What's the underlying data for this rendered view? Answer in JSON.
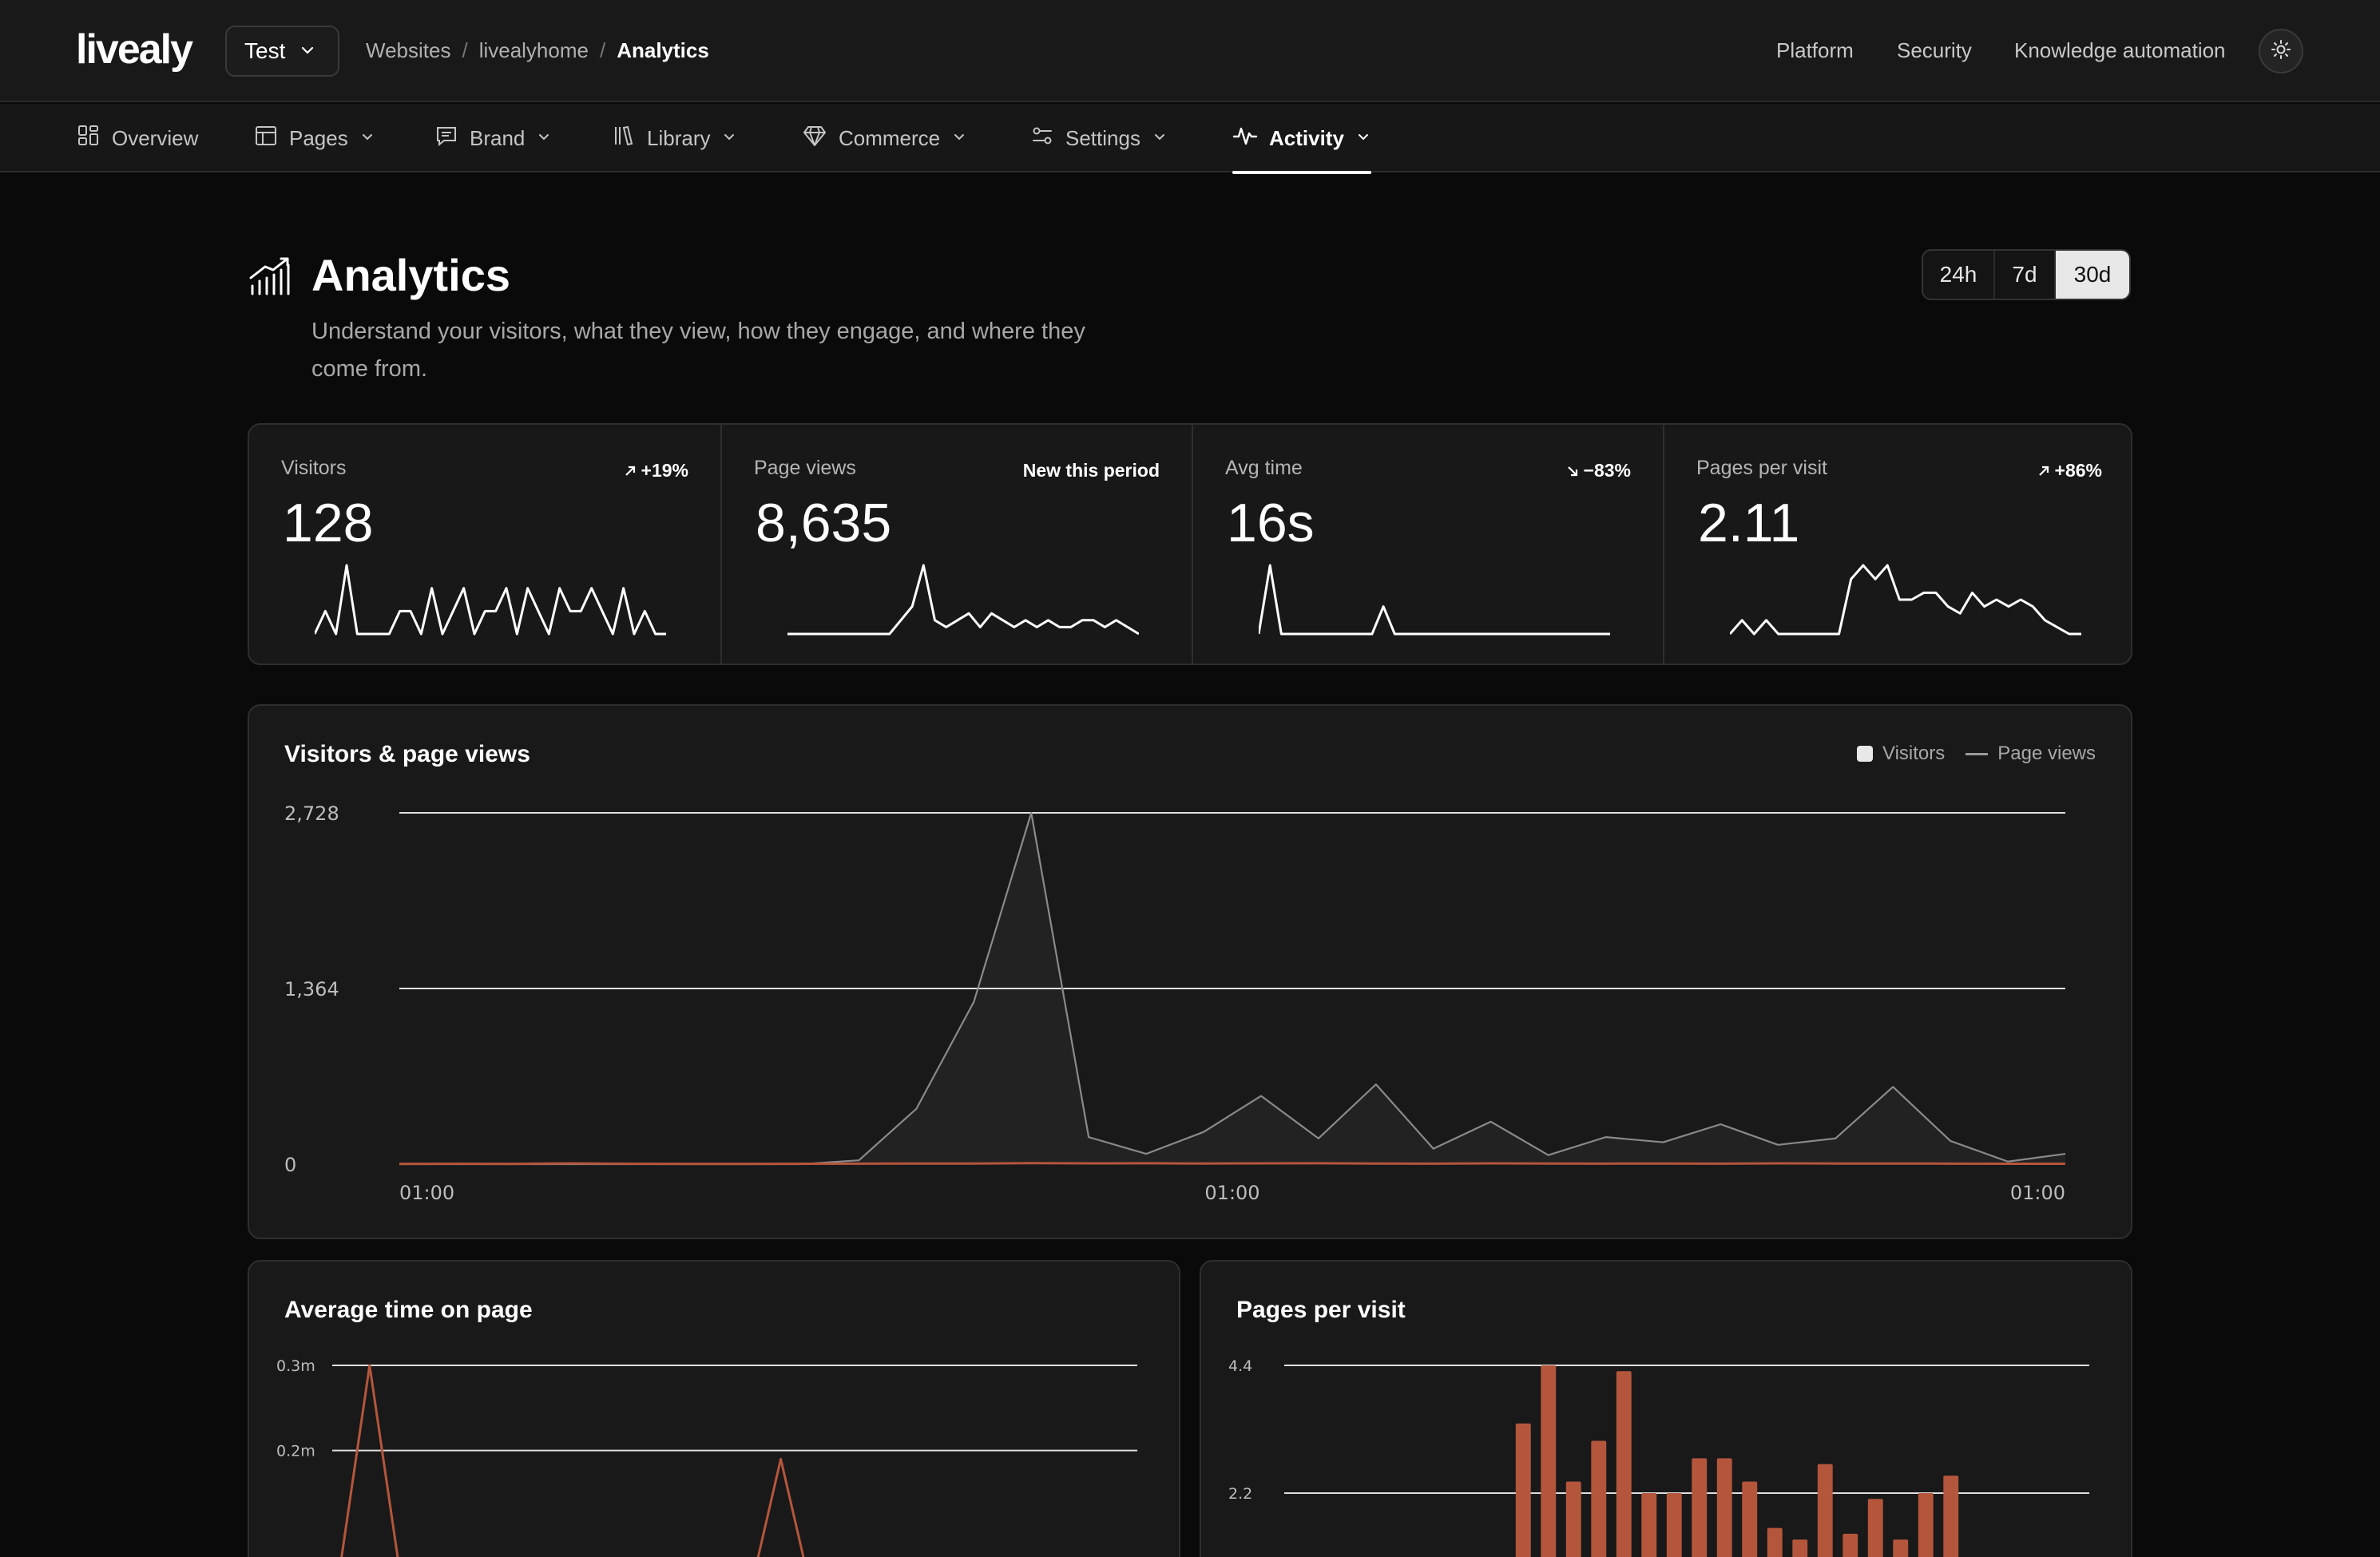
{
  "app": {
    "logo_text": "livealy",
    "project": "Test"
  },
  "breadcrumb": {
    "items": [
      "Websites",
      "livealyhome"
    ],
    "separator": "/",
    "current": "Analytics"
  },
  "top_nav": {
    "platform": "Platform",
    "security": "Security",
    "knowledge": "Knowledge automation",
    "theme_icon": "sun-icon"
  },
  "tabs": [
    {
      "label": "Overview",
      "icon": "grid-icon"
    },
    {
      "label": "Pages",
      "icon": "layout-icon"
    },
    {
      "label": "Brand",
      "icon": "message-icon"
    },
    {
      "label": "Library",
      "icon": "library-icon"
    },
    {
      "label": "Commerce",
      "icon": "diamond-icon"
    },
    {
      "label": "Settings",
      "icon": "sliders-icon"
    },
    {
      "label": "Activity",
      "icon": "activity-icon",
      "active": true
    }
  ],
  "page": {
    "title": "Analytics",
    "subtitle": "Understand your visitors, what they view, how they engage, and where they come from."
  },
  "ranges": {
    "options": [
      "24h",
      "7d",
      "30d"
    ],
    "selected": "30d"
  },
  "stats": [
    {
      "label": "Visitors",
      "value": "128",
      "delta": "+19%",
      "direction": "up",
      "spark": [
        0,
        1,
        0,
        3,
        0,
        0,
        0,
        0,
        1,
        1,
        0,
        2,
        0,
        1,
        2,
        0,
        1,
        1,
        2,
        0,
        2,
        1,
        0,
        2,
        1,
        1,
        2,
        1,
        0,
        2,
        0,
        1,
        0,
        0
      ]
    },
    {
      "label": "Page views",
      "value": "8,635",
      "delta": "New this period",
      "direction": "none",
      "spark": [
        0,
        0,
        0,
        0,
        0,
        0,
        0,
        0,
        0,
        0,
        0.2,
        0.4,
        1,
        0.2,
        0.1,
        0.2,
        0.3,
        0.1,
        0.3,
        0.2,
        0.1,
        0.2,
        0.1,
        0.2,
        0.1,
        0.1,
        0.2,
        0.2,
        0.1,
        0.2,
        0.1,
        0
      ]
    },
    {
      "label": "Avg time",
      "value": "16s",
      "delta": "−83%",
      "direction": "down",
      "spark": [
        0,
        1,
        0,
        0,
        0,
        0,
        0,
        0,
        0,
        0,
        0,
        0.4,
        0,
        0,
        0,
        0,
        0,
        0,
        0,
        0,
        0,
        0,
        0,
        0,
        0,
        0,
        0,
        0,
        0,
        0,
        0,
        0
      ]
    },
    {
      "label": "Pages per visit",
      "value": "2.11",
      "delta": "+86%",
      "direction": "up",
      "spark": [
        0,
        0.2,
        0,
        0.2,
        0,
        0,
        0,
        0,
        0,
        0,
        0.8,
        1,
        0.8,
        1,
        0.5,
        0.5,
        0.6,
        0.6,
        0.4,
        0.3,
        0.6,
        0.4,
        0.5,
        0.4,
        0.5,
        0.4,
        0.2,
        0.1,
        0,
        0
      ]
    }
  ],
  "colors": {
    "accent": "#b4563c",
    "line_gray": "#8a8a8a",
    "background": "#0a0a0a",
    "panel": "#191919"
  },
  "panels": {
    "main_title": "Visitors & page views",
    "legend_visitors": "Visitors",
    "legend_pageviews": "Page views",
    "avg_time_title": "Average time on page",
    "ppv_title": "Pages per visit"
  },
  "chart_data": [
    {
      "type": "line",
      "title": "Visitors & page views",
      "x_tick_labels": [
        "01:00",
        "01:00",
        "01:00"
      ],
      "y_tick_labels": [
        "2,728",
        "1,364",
        "0"
      ],
      "ylim": [
        0,
        2728
      ],
      "legend_position": "top-right",
      "grid": true,
      "series": [
        {
          "name": "Page views",
          "color": "#8a8a8a",
          "values": [
            0,
            0,
            0,
            0,
            0,
            0,
            0,
            0,
            30,
            430,
            1260,
            2728,
            210,
            80,
            250,
            530,
            200,
            620,
            120,
            330,
            70,
            210,
            170,
            310,
            150,
            200,
            600,
            180,
            20,
            80
          ]
        },
        {
          "name": "Visitors",
          "color": "#b4563c",
          "values": [
            2,
            3,
            2,
            6,
            3,
            2,
            2,
            3,
            4,
            5,
            5,
            8,
            6,
            7,
            5,
            6,
            7,
            5,
            4,
            6,
            5,
            4,
            5,
            4,
            6,
            5,
            5,
            4,
            3,
            3
          ]
        }
      ]
    },
    {
      "type": "line",
      "title": "Average time on page",
      "y_tick_labels": [
        "0.3m",
        "0.2m"
      ],
      "ylim": [
        0,
        0.3
      ],
      "grid": true,
      "series": [
        {
          "name": "",
          "color": "#b4563c",
          "values": [
            0.0,
            0.3,
            0.0,
            0.0,
            0.0,
            0.0,
            0.0,
            0.0,
            0.0,
            0.0,
            0.0,
            0.0,
            0.19,
            0.0,
            0.0
          ]
        }
      ]
    },
    {
      "type": "bar",
      "title": "Pages per visit",
      "y_tick_labels": [
        "4.4",
        "2.2"
      ],
      "ylim": [
        0,
        4.4
      ],
      "grid": true,
      "series": [
        {
          "name": "",
          "color": "#b4563c",
          "values": [
            0,
            0,
            0,
            0,
            0,
            0,
            0,
            0,
            0,
            3.4,
            4.4,
            2.4,
            3.1,
            4.3,
            2.2,
            2.2,
            2.8,
            2.8,
            2.4,
            1.6,
            1.4,
            2.7,
            1.5,
            2.1,
            1.4,
            2.2,
            2.5,
            0,
            0,
            0,
            0,
            0
          ]
        }
      ]
    }
  ]
}
